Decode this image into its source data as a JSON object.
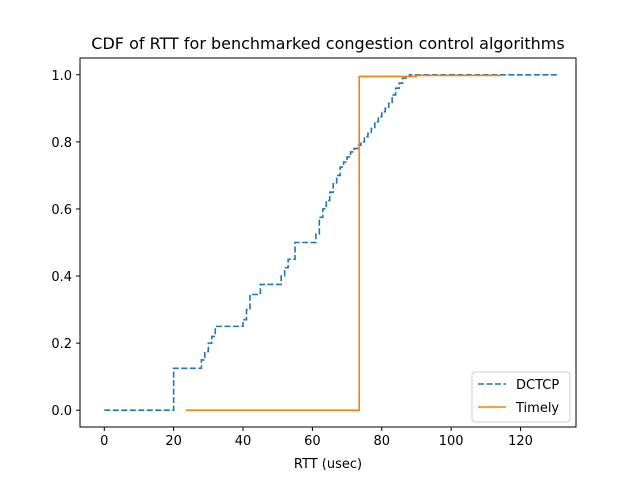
{
  "chart_data": {
    "type": "line",
    "step": true,
    "title": "CDF of RTT for benchmarked congestion control algorithms",
    "xlabel": "RTT (usec)",
    "ylabel": "",
    "xlim": [
      -7,
      136
    ],
    "ylim": [
      -0.05,
      1.05
    ],
    "xticks": [
      0,
      20,
      40,
      60,
      80,
      100,
      120
    ],
    "yticks": [
      0.0,
      0.2,
      0.4,
      0.6,
      0.8,
      1.0
    ],
    "grid": false,
    "legend": "lower-right",
    "series": [
      {
        "name": "DCTCP",
        "color": "#1f77b4",
        "dash": "dashed",
        "x": [
          0,
          20,
          20,
          28,
          29,
          30,
          31,
          32,
          34,
          37,
          40,
          41,
          42,
          45,
          51,
          52,
          53,
          55,
          56,
          61,
          62,
          63,
          64,
          65,
          66,
          67,
          68,
          69,
          70,
          71,
          72,
          73,
          74,
          75,
          76,
          77,
          78,
          79,
          80,
          81,
          82,
          83,
          84,
          85,
          86,
          87,
          88,
          89,
          131
        ],
        "y": [
          0,
          0,
          0.125,
          0.15,
          0.175,
          0.2,
          0.22,
          0.25,
          0.25,
          0.25,
          0.27,
          0.3,
          0.345,
          0.375,
          0.4,
          0.425,
          0.45,
          0.5,
          0.5,
          0.525,
          0.575,
          0.6,
          0.625,
          0.65,
          0.675,
          0.7,
          0.725,
          0.74,
          0.755,
          0.77,
          0.78,
          0.79,
          0.8,
          0.815,
          0.825,
          0.84,
          0.86,
          0.875,
          0.89,
          0.9,
          0.915,
          0.94,
          0.96,
          0.975,
          0.99,
          0.995,
          1.0,
          1.0,
          1.0
        ]
      },
      {
        "name": "Timely",
        "color": "#ff7f0e",
        "dash": "solid",
        "x": [
          23.5,
          73.5,
          90,
          114
        ],
        "y": [
          0.0,
          0.995,
          0.998,
          1.0
        ]
      }
    ]
  }
}
